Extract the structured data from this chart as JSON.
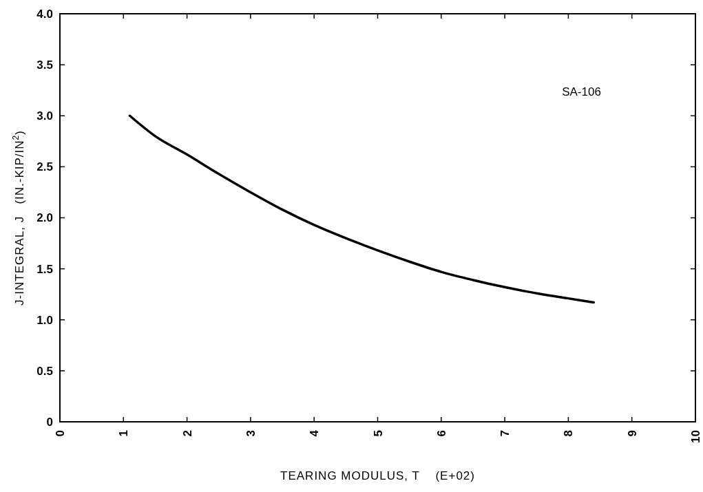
{
  "chart_data": {
    "type": "line",
    "xlabel": "TEARING MODULUS, T    (E+02)",
    "ylabel": "J-INTEGRAL, J   (IN.-KIP/IN$^{2}$)",
    "annotations": [
      "SA-106"
    ],
    "xlim": [
      0,
      10
    ],
    "xticks": [
      0,
      1,
      2,
      3,
      4,
      5,
      6,
      7,
      8,
      9,
      10
    ],
    "ylim": [
      0,
      4
    ],
    "yticks": [
      0,
      {
        "value": 0.5,
        "label": "0.5"
      },
      {
        "value": 1,
        "label": "1.0"
      },
      {
        "value": 1.5,
        "label": "1.5"
      },
      {
        "value": 2,
        "label": "2.0"
      },
      {
        "value": 2.5,
        "label": "2.5"
      },
      {
        "value": 3,
        "label": "3.0"
      },
      {
        "value": 3.5,
        "label": "3.5"
      },
      {
        "value": 4,
        "label": "4.0"
      }
    ],
    "series": [
      {
        "color": "#000000",
        "x": [
          1.1,
          1.5,
          2,
          2.5,
          3,
          3.5,
          4,
          4.5,
          5,
          5.5,
          6,
          6.5,
          7,
          7.5,
          8,
          8.4
        ],
        "values": [
          3.0,
          2.8,
          2.62,
          2.43,
          2.25,
          2.08,
          1.93,
          1.8,
          1.68,
          1.57,
          1.47,
          1.39,
          1.32,
          1.26,
          1.21,
          1.17
        ]
      }
    ]
  }
}
